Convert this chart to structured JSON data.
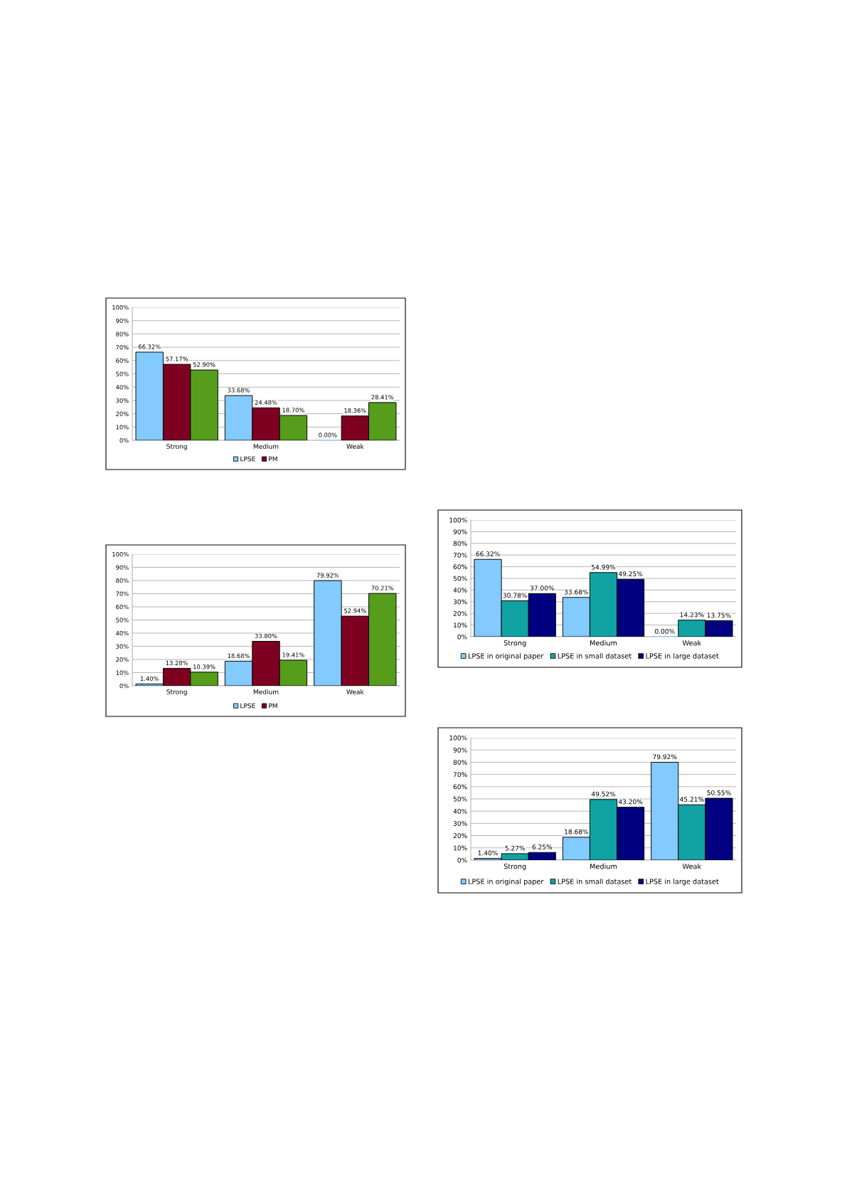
{
  "chart_data": [
    {
      "type": "bar",
      "categories": [
        "Strong",
        "Medium",
        "Weak"
      ],
      "ylim": [
        0,
        100
      ],
      "yticks": [
        {
          "value": 0,
          "label": "0%"
        },
        {
          "value": 10,
          "label": "10%"
        },
        {
          "value": 20,
          "label": "20%"
        },
        {
          "value": 30,
          "label": "30%"
        },
        {
          "value": 40,
          "label": "40%"
        },
        {
          "value": 50,
          "label": "50%"
        },
        {
          "value": 60,
          "label": "60%"
        },
        {
          "value": 70,
          "label": "70%"
        },
        {
          "value": 80,
          "label": "80%"
        },
        {
          "value": 90,
          "label": "90%"
        },
        {
          "value": 100,
          "label": "100%"
        }
      ],
      "grid": "y",
      "legend": "bottom",
      "series": [
        {
          "name": "LPSE",
          "color": "#83caff",
          "values": [
            66.32,
            33.68,
            0.0
          ],
          "value_labels": [
            "66.32%",
            "33.68%",
            "0.00%"
          ]
        },
        {
          "name": "PM",
          "color": "#7e0021",
          "values": [
            57.17,
            24.48,
            18.36
          ],
          "value_labels": [
            "57.17%",
            "24.48%",
            "18.36%"
          ]
        },
        {
          "color": "#579d1c",
          "values": [
            52.9,
            18.7,
            28.41
          ],
          "value_labels": [
            "52.90%",
            "18.70%",
            "28.41%"
          ]
        }
      ]
    },
    {
      "type": "bar",
      "categories": [
        "Strong",
        "Medium",
        "Weak"
      ],
      "ylim": [
        0,
        100
      ],
      "yticks": [
        {
          "value": 0,
          "label": "0%"
        },
        {
          "value": 10,
          "label": "10%"
        },
        {
          "value": 20,
          "label": "20%"
        },
        {
          "value": 30,
          "label": "30%"
        },
        {
          "value": 40,
          "label": "40%"
        },
        {
          "value": 50,
          "label": "50%"
        },
        {
          "value": 60,
          "label": "60%"
        },
        {
          "value": 70,
          "label": "70%"
        },
        {
          "value": 80,
          "label": "80%"
        },
        {
          "value": 90,
          "label": "90%"
        },
        {
          "value": 100,
          "label": "100%"
        }
      ],
      "grid": "y",
      "legend": "bottom",
      "series": [
        {
          "name": "LPSE",
          "color": "#83caff",
          "values": [
            1.4,
            18.68,
            79.92
          ],
          "value_labels": [
            "1.40%",
            "18.68%",
            "79.92%"
          ]
        },
        {
          "name": "PM",
          "color": "#7e0021",
          "values": [
            13.28,
            33.8,
            52.94
          ],
          "value_labels": [
            "13.28%",
            "33.80%",
            "52.94%"
          ]
        },
        {
          "color": "#579d1c",
          "values": [
            10.39,
            19.41,
            70.21
          ],
          "value_labels": [
            "10.39%",
            "19.41%",
            "70.21%"
          ]
        }
      ]
    },
    {
      "type": "bar",
      "categories": [
        "Strong",
        "Medium",
        "Weak"
      ],
      "ylim": [
        0,
        100
      ],
      "yticks": [
        {
          "value": 0,
          "label": "0%"
        },
        {
          "value": 10,
          "label": "10%"
        },
        {
          "value": 20,
          "label": "20%"
        },
        {
          "value": 30,
          "label": "30%"
        },
        {
          "value": 40,
          "label": "40%"
        },
        {
          "value": 50,
          "label": "50%"
        },
        {
          "value": 60,
          "label": "60%"
        },
        {
          "value": 70,
          "label": "70%"
        },
        {
          "value": 80,
          "label": "80%"
        },
        {
          "value": 90,
          "label": "90%"
        },
        {
          "value": 100,
          "label": "100%"
        }
      ],
      "grid": "y",
      "legend": "bottom",
      "series": [
        {
          "name": "LPSE in original paper",
          "color": "#83caff",
          "values": [
            66.32,
            33.68,
            0.0
          ],
          "value_labels": [
            "66.32%",
            "33.68%",
            "0.00%"
          ]
        },
        {
          "name": "LPSE in small dataset",
          "color": "#11a3a3",
          "values": [
            30.78,
            54.99,
            14.23
          ],
          "value_labels": [
            "30.78%",
            "54.99%",
            "14.23%"
          ]
        },
        {
          "name": "LPSE in large dataset",
          "color": "#000080",
          "values": [
            37.0,
            49.25,
            13.75
          ],
          "value_labels": [
            "37.00%",
            "49.25%",
            "13.75%"
          ]
        }
      ]
    },
    {
      "type": "bar",
      "categories": [
        "Strong",
        "Medium",
        "Weak"
      ],
      "ylim": [
        0,
        100
      ],
      "yticks": [
        {
          "value": 0,
          "label": "0%"
        },
        {
          "value": 10,
          "label": "10%"
        },
        {
          "value": 20,
          "label": "20%"
        },
        {
          "value": 30,
          "label": "30%"
        },
        {
          "value": 40,
          "label": "40%"
        },
        {
          "value": 50,
          "label": "50%"
        },
        {
          "value": 60,
          "label": "60%"
        },
        {
          "value": 70,
          "label": "70%"
        },
        {
          "value": 80,
          "label": "80%"
        },
        {
          "value": 90,
          "label": "90%"
        },
        {
          "value": 100,
          "label": "100%"
        }
      ],
      "grid": "y",
      "legend": "bottom",
      "series": [
        {
          "name": "LPSE in original paper",
          "color": "#83caff",
          "values": [
            1.4,
            18.68,
            79.92
          ],
          "value_labels": [
            "1.40%",
            "18.68%",
            "79.92%"
          ]
        },
        {
          "name": "LPSE in small dataset",
          "color": "#11a3a3",
          "values": [
            5.27,
            49.52,
            45.21
          ],
          "value_labels": [
            "5.27%",
            "49.52%",
            "45.21%"
          ]
        },
        {
          "name": "LPSE in large dataset",
          "color": "#000080",
          "values": [
            6.25,
            43.2,
            50.55
          ],
          "value_labels": [
            "6.25%",
            "43.20%",
            "50.55%"
          ]
        }
      ]
    }
  ]
}
